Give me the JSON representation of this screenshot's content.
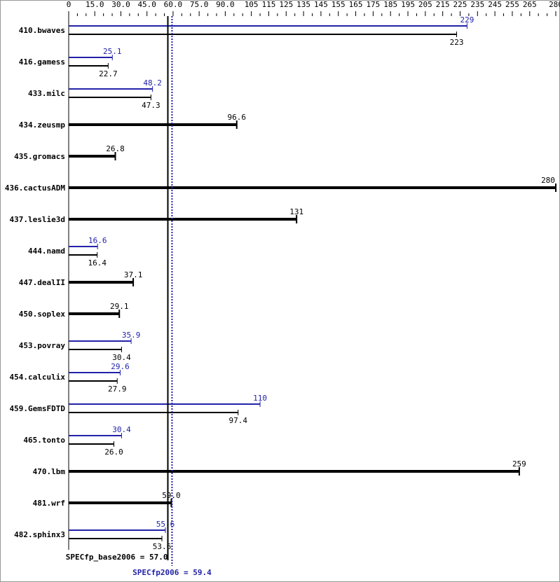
{
  "chart_data": {
    "type": "bar",
    "orientation": "horizontal",
    "x_ticks": [
      "0",
      "15.0",
      "30.0",
      "45.0",
      "60.0",
      "75.0",
      "90.0",
      "105",
      "115",
      "125",
      "135",
      "145",
      "155",
      "165",
      "175",
      "185",
      "195",
      "205",
      "215",
      "225",
      "235",
      "245",
      "255",
      "265",
      "280"
    ],
    "x_tick_values": [
      0,
      15,
      30,
      45,
      60,
      75,
      90,
      105,
      115,
      125,
      135,
      145,
      155,
      165,
      175,
      185,
      195,
      205,
      215,
      225,
      235,
      245,
      255,
      265,
      280
    ],
    "xlim": [
      0,
      280
    ],
    "axis_position": "top",
    "categories": [
      "410.bwaves",
      "416.gamess",
      "433.milc",
      "434.zeusmp",
      "435.gromacs",
      "436.cactusADM",
      "437.leslie3d",
      "444.namd",
      "447.dealII",
      "450.soplex",
      "453.povray",
      "454.calculix",
      "459.GemsFDTD",
      "465.tonto",
      "470.lbm",
      "481.wrf",
      "482.sphinx3"
    ],
    "series": [
      {
        "key": "peak",
        "color": "#2222aa",
        "values": [
          229,
          25.1,
          48.2,
          null,
          null,
          null,
          null,
          16.6,
          null,
          null,
          35.9,
          29.6,
          110,
          30.4,
          null,
          null,
          55.6
        ],
        "labels": [
          "229",
          "25.1",
          "48.2",
          null,
          null,
          null,
          null,
          "16.6",
          null,
          null,
          "35.9",
          "29.6",
          "110",
          "30.4",
          null,
          null,
          "55.6"
        ]
      },
      {
        "key": "base",
        "color": "#000000",
        "values": [
          223,
          22.7,
          47.3,
          96.6,
          26.8,
          280,
          131,
          16.4,
          37.1,
          29.1,
          30.4,
          27.9,
          97.4,
          26.0,
          259,
          59.0,
          53.6
        ],
        "labels": [
          "223",
          "22.7",
          "47.3",
          "96.6",
          "26.8",
          "280",
          "131",
          "16.4",
          "37.1",
          "29.1",
          "30.4",
          "27.9",
          "97.4",
          "26.0",
          "259",
          "59.0",
          "53.6"
        ]
      }
    ],
    "reference_lines": [
      {
        "key": "base",
        "value": 57.0,
        "label": "SPECfp_base2006 = 57.0",
        "color": "#000000",
        "style": "solid"
      },
      {
        "key": "peak",
        "value": 59.4,
        "label": "SPECfp2006 = 59.4",
        "color": "#2222aa",
        "style": "dotted"
      }
    ]
  }
}
